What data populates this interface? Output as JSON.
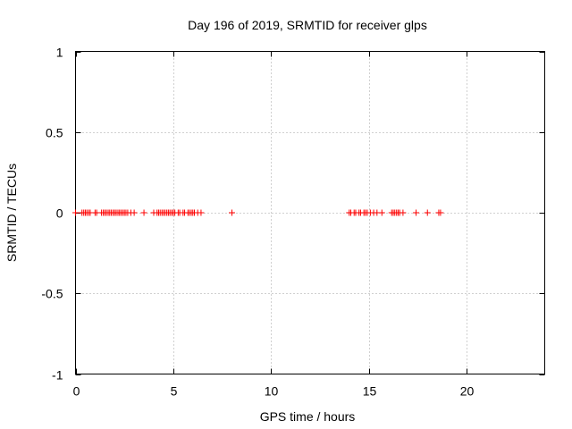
{
  "chart_data": {
    "type": "scatter",
    "title": "Day 196 of 2019, SRMTID for receiver glps",
    "xlabel": "GPS time / hours",
    "ylabel": "SRMTID / TECUs",
    "xlim": [
      0,
      24
    ],
    "ylim": [
      -1,
      1
    ],
    "xticks": [
      0,
      5,
      10,
      15,
      20
    ],
    "yticks": [
      -1,
      -0.5,
      0,
      0.5,
      1
    ],
    "xtick_labels": [
      "0",
      "5",
      "10",
      "15",
      "20"
    ],
    "ytick_labels": [
      "-1",
      "-0.5",
      "0",
      "0.5",
      "1"
    ],
    "grid": true,
    "marker": "+",
    "color": "#ff0000",
    "series": [
      {
        "x": [
          0.0,
          0.33,
          0.42,
          0.5,
          0.58,
          0.67,
          0.75,
          1.0,
          1.08,
          1.33,
          1.42,
          1.5,
          1.58,
          1.67,
          1.75,
          1.83,
          1.92,
          2.0,
          2.08,
          2.17,
          2.25,
          2.33,
          2.42,
          2.5,
          2.58,
          2.67,
          2.83,
          3.0,
          3.5,
          4.0,
          4.17,
          4.25,
          4.33,
          4.42,
          4.5,
          4.58,
          4.67,
          4.75,
          4.83,
          4.92,
          5.0,
          5.08,
          5.25,
          5.33,
          5.5,
          5.58,
          5.75,
          5.83,
          5.92,
          6.0,
          6.08,
          6.25,
          6.42,
          8.0,
          14.0,
          14.08,
          14.25,
          14.33,
          14.5,
          14.58,
          14.75,
          14.83,
          14.92,
          15.08,
          15.25,
          15.42,
          15.67,
          16.17,
          16.25,
          16.33,
          16.42,
          16.5,
          16.58,
          16.75,
          17.42,
          18.0,
          18.58,
          18.67
        ],
        "y": [
          0,
          0,
          0,
          0,
          0,
          0,
          0,
          0,
          0,
          0,
          0,
          0,
          0,
          0,
          0,
          0,
          0,
          0,
          0,
          0,
          0,
          0,
          0,
          0,
          0,
          0,
          0,
          0,
          0,
          0,
          0,
          0,
          0,
          0,
          0,
          0,
          0,
          0,
          0,
          0,
          0,
          0,
          0,
          0,
          0,
          0,
          0,
          0,
          0,
          0,
          0,
          0,
          0,
          0,
          0,
          0,
          0,
          0,
          0,
          0,
          0,
          0,
          0,
          0,
          0,
          0,
          0,
          0,
          0,
          0,
          0,
          0,
          0,
          0,
          0,
          0,
          0,
          0
        ]
      }
    ]
  }
}
